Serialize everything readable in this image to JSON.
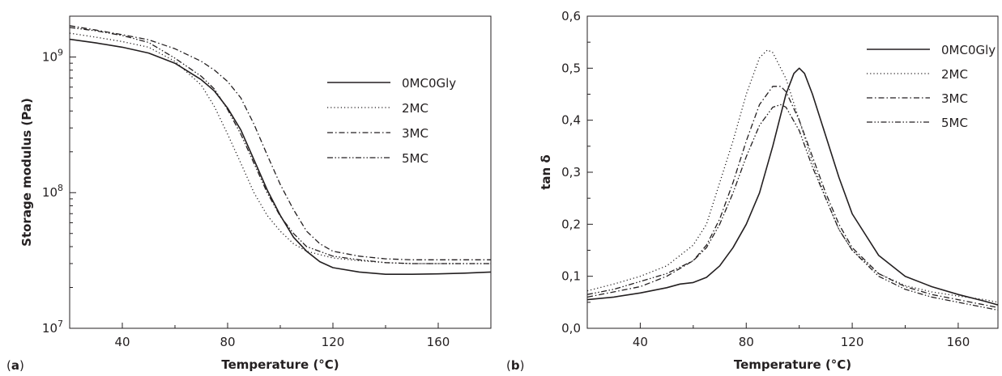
{
  "chart_data": [
    {
      "panel_label": "a",
      "type": "line",
      "xlabel": "Temperature (°C)",
      "ylabel": "Storage modulus (Pa)",
      "xlim": [
        20,
        180
      ],
      "ylim": [
        10000000,
        2000000000
      ],
      "yscale": "log",
      "x_ticks": [
        "40",
        "80",
        "120",
        "160"
      ],
      "y_ticks": [
        {
          "base": "10",
          "exp": "7"
        },
        {
          "base": "10",
          "exp": "8"
        },
        {
          "base": "10",
          "exp": "9"
        }
      ],
      "legend_position": "right",
      "series": [
        {
          "name": "0MC0Gly",
          "dash": "solid",
          "x": [
            20,
            30,
            40,
            50,
            60,
            70,
            75,
            80,
            85,
            90,
            95,
            100,
            105,
            110,
            115,
            120,
            130,
            140,
            150,
            160,
            170,
            180
          ],
          "y": [
            1350000000,
            1270000000,
            1180000000,
            1070000000,
            900000000,
            680000000,
            560000000,
            420000000,
            290000000,
            175000000,
            105000000,
            68000000,
            47000000,
            37000000,
            31000000,
            28000000,
            26000000,
            25000000,
            25000000,
            25200000,
            25500000,
            26000000
          ]
        },
        {
          "name": "2MC",
          "dash": "dotted",
          "x": [
            20,
            30,
            40,
            50,
            60,
            70,
            75,
            80,
            85,
            90,
            95,
            100,
            105,
            110,
            120,
            130,
            140,
            150,
            160,
            170,
            180
          ],
          "y": [
            1500000000,
            1400000000,
            1300000000,
            1180000000,
            930000000,
            620000000,
            430000000,
            270000000,
            165000000,
            100000000,
            68000000,
            52000000,
            42000000,
            37000000,
            33000000,
            31500000,
            30500000,
            30000000,
            30000000,
            30000000,
            30000000
          ]
        },
        {
          "name": "3MC",
          "dash": "dashdot",
          "x": [
            20,
            30,
            40,
            50,
            60,
            70,
            75,
            80,
            85,
            90,
            95,
            100,
            105,
            110,
            115,
            120,
            130,
            140,
            150,
            160,
            170,
            180
          ],
          "y": [
            1700000000,
            1580000000,
            1460000000,
            1340000000,
            1150000000,
            930000000,
            800000000,
            660000000,
            500000000,
            320000000,
            190000000,
            115000000,
            75000000,
            52000000,
            42000000,
            37000000,
            34000000,
            32500000,
            32000000,
            32000000,
            32000000,
            32000000
          ]
        },
        {
          "name": "5MC",
          "dash": "dashdotdot",
          "x": [
            20,
            30,
            40,
            50,
            60,
            70,
            75,
            80,
            85,
            90,
            95,
            100,
            105,
            110,
            120,
            130,
            140,
            150,
            160,
            170,
            180
          ],
          "y": [
            1650000000,
            1560000000,
            1440000000,
            1280000000,
            980000000,
            720000000,
            580000000,
            410000000,
            270000000,
            165000000,
            100000000,
            67000000,
            50000000,
            40000000,
            34000000,
            32000000,
            30500000,
            30000000,
            30000000,
            30000000,
            30000000
          ]
        }
      ]
    },
    {
      "panel_label": "b",
      "type": "line",
      "xlabel": "Temperature (°C)",
      "ylabel": "tan δ",
      "xlim": [
        20,
        175
      ],
      "ylim": [
        0,
        0.6
      ],
      "yscale": "linear",
      "x_ticks": [
        "40",
        "80",
        "120",
        "160"
      ],
      "y_ticks": [
        "0,0",
        "0,1",
        "0,2",
        "0,3",
        "0,4",
        "0,5",
        "0,6"
      ],
      "legend_position": "top-right",
      "series": [
        {
          "name": "0MC0Gly",
          "dash": "solid",
          "x": [
            20,
            30,
            40,
            50,
            55,
            60,
            65,
            70,
            75,
            80,
            85,
            90,
            95,
            98,
            100,
            102,
            105,
            110,
            115,
            120,
            130,
            140,
            150,
            160,
            170,
            175
          ],
          "y": [
            0.055,
            0.06,
            0.068,
            0.078,
            0.085,
            0.088,
            0.098,
            0.12,
            0.155,
            0.2,
            0.26,
            0.35,
            0.45,
            0.49,
            0.5,
            0.49,
            0.45,
            0.37,
            0.29,
            0.22,
            0.14,
            0.1,
            0.08,
            0.065,
            0.052,
            0.045
          ]
        },
        {
          "name": "2MC",
          "dash": "dotted",
          "x": [
            20,
            30,
            40,
            50,
            60,
            65,
            70,
            75,
            80,
            85,
            88,
            90,
            95,
            100,
            105,
            110,
            115,
            120,
            130,
            140,
            150,
            160,
            170,
            175
          ],
          "y": [
            0.072,
            0.085,
            0.1,
            0.12,
            0.16,
            0.2,
            0.28,
            0.36,
            0.45,
            0.52,
            0.535,
            0.53,
            0.48,
            0.4,
            0.32,
            0.25,
            0.19,
            0.15,
            0.105,
            0.082,
            0.07,
            0.062,
            0.055,
            0.05
          ]
        },
        {
          "name": "3MC",
          "dash": "dashdot",
          "x": [
            20,
            30,
            40,
            50,
            60,
            65,
            70,
            75,
            80,
            85,
            90,
            93,
            95,
            100,
            105,
            110,
            115,
            120,
            130,
            140,
            150,
            160,
            170,
            175
          ],
          "y": [
            0.06,
            0.07,
            0.08,
            0.1,
            0.13,
            0.16,
            0.21,
            0.28,
            0.36,
            0.43,
            0.465,
            0.465,
            0.455,
            0.4,
            0.33,
            0.26,
            0.2,
            0.155,
            0.105,
            0.08,
            0.065,
            0.055,
            0.045,
            0.04
          ]
        },
        {
          "name": "5MC",
          "dash": "dashdotdot",
          "x": [
            20,
            30,
            40,
            50,
            60,
            65,
            70,
            75,
            80,
            85,
            90,
            93,
            95,
            100,
            105,
            110,
            115,
            120,
            130,
            140,
            150,
            160,
            170,
            175
          ],
          "y": [
            0.065,
            0.075,
            0.09,
            0.105,
            0.13,
            0.155,
            0.2,
            0.26,
            0.33,
            0.39,
            0.425,
            0.43,
            0.425,
            0.38,
            0.31,
            0.25,
            0.19,
            0.15,
            0.1,
            0.075,
            0.06,
            0.05,
            0.04,
            0.035
          ]
        }
      ]
    }
  ]
}
